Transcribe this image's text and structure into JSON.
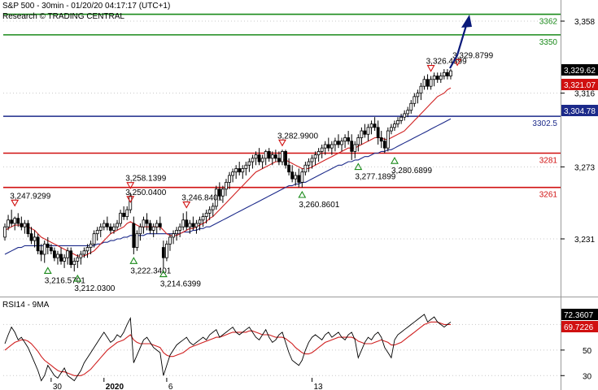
{
  "header": {
    "title": "S&P 500 - 30min - 01/20/20 04:17:17 (UTC+1)",
    "subtitle": "Research © TRADING CENTRAL"
  },
  "colors": {
    "candle": "#000000",
    "ma_fast": "#d02020",
    "ma_slow": "#1c2a8a",
    "resistance_green": "#1a8a1a",
    "level_red": "#d01010",
    "level_blue": "#1c2a8a",
    "arrow": "#0a1a7a",
    "price_tag_dark": "#000000",
    "price_tag_red": "#d01010",
    "price_tag_blue": "#1c2a8a"
  },
  "levels": [
    {
      "label": "3362",
      "value": 3362,
      "color": "green"
    },
    {
      "label": "3350",
      "value": 3350,
      "color": "green"
    },
    {
      "label": "3302.5",
      "value": 3302.5,
      "color": "blue"
    },
    {
      "label": "3281",
      "value": 3281,
      "color": "red"
    },
    {
      "label": "3261",
      "value": 3261,
      "color": "red"
    }
  ],
  "price_tags": [
    {
      "label": "3,329.62",
      "value": 3329.62,
      "style": "dark"
    },
    {
      "label": "3,321.07",
      "value": 3321.07,
      "style": "red"
    },
    {
      "label": "3,304.78",
      "value": 3304.78,
      "style": "blue"
    }
  ],
  "rsi": {
    "title": "RSI14 - 9MA",
    "tags": [
      {
        "label": "72.3607",
        "value": 72.36,
        "style": "dark"
      },
      {
        "label": "69.7226",
        "value": 69.72,
        "style": "red"
      }
    ],
    "ticks": [
      "50",
      "30"
    ]
  },
  "annotations": [
    {
      "label": "3,247.9299",
      "type": "high",
      "bar": 3,
      "value": 3247.93
    },
    {
      "label": "3,216.5701",
      "type": "low",
      "bar": 13,
      "value": 3216.57
    },
    {
      "label": "3,212.0300",
      "type": "low",
      "bar": 22,
      "value": 3212.03
    },
    {
      "label": "3,250.0400",
      "type": "high",
      "bar": 38,
      "value": 3250.04
    },
    {
      "label": "3,258.1399",
      "type": "high",
      "bar": 38,
      "value": 3258.14
    },
    {
      "label": "3,222.3401",
      "type": "low",
      "bar": 39,
      "value": 3222.34
    },
    {
      "label": "3,214.6399",
      "type": "low",
      "bar": 48,
      "value": 3214.64
    },
    {
      "label": "3,246.8401",
      "type": "high",
      "bar": 55,
      "value": 3246.84
    },
    {
      "label": "3,282.9900",
      "type": "high",
      "bar": 84,
      "value": 3282.99
    },
    {
      "label": "3,260.8601",
      "type": "low",
      "bar": 90,
      "value": 3260.86
    },
    {
      "label": "3,277.1899",
      "type": "low",
      "bar": 107,
      "value": 3277.19
    },
    {
      "label": "3,280.6899",
      "type": "low",
      "bar": 118,
      "value": 3280.69
    },
    {
      "label": "3,326.4399",
      "type": "high",
      "bar": 129,
      "value": 3326.44
    },
    {
      "label": "3,329.8799",
      "type": "high",
      "bar": 137,
      "value": 3329.88
    }
  ],
  "chart_data": {
    "type": "candlestick",
    "y_ticks": [
      3358,
      3316,
      3273,
      3231
    ],
    "y_tick_labels": [
      "3,358",
      "3,316",
      "3,273",
      "3,231"
    ],
    "ylim": [
      3200,
      3368
    ],
    "x_tick_labels": [
      {
        "label": "30",
        "bar": 14
      },
      {
        "label": "2020",
        "bar": 30
      },
      {
        "label": "6",
        "bar": 49
      },
      {
        "label": "13",
        "bar": 93
      }
    ],
    "candles": [
      [
        3232,
        3240,
        3230,
        3238
      ],
      [
        3238,
        3245,
        3236,
        3242
      ],
      [
        3242,
        3248,
        3238,
        3240
      ],
      [
        3240,
        3244,
        3236,
        3243
      ],
      [
        3243,
        3246,
        3238,
        3240
      ],
      [
        3240,
        3244,
        3236,
        3238
      ],
      [
        3238,
        3242,
        3234,
        3240
      ],
      [
        3240,
        3242,
        3232,
        3234
      ],
      [
        3234,
        3238,
        3228,
        3230
      ],
      [
        3230,
        3236,
        3226,
        3232
      ],
      [
        3232,
        3234,
        3222,
        3224
      ],
      [
        3224,
        3228,
        3218,
        3222
      ],
      [
        3222,
        3230,
        3217,
        3228
      ],
      [
        3228,
        3232,
        3222,
        3226
      ],
      [
        3226,
        3228,
        3222,
        3224
      ],
      [
        3224,
        3226,
        3218,
        3220
      ],
      [
        3220,
        3224,
        3216,
        3222
      ],
      [
        3222,
        3226,
        3216,
        3218
      ],
      [
        3218,
        3222,
        3214,
        3220
      ],
      [
        3220,
        3226,
        3216,
        3224
      ],
      [
        3224,
        3226,
        3214,
        3216
      ],
      [
        3216,
        3220,
        3212,
        3218
      ],
      [
        3218,
        3222,
        3214,
        3220
      ],
      [
        3220,
        3224,
        3216,
        3222
      ],
      [
        3222,
        3226,
        3220,
        3224
      ],
      [
        3224,
        3228,
        3220,
        3226
      ],
      [
        3226,
        3230,
        3222,
        3228
      ],
      [
        3228,
        3236,
        3226,
        3234
      ],
      [
        3234,
        3238,
        3230,
        3236
      ],
      [
        3236,
        3240,
        3232,
        3238
      ],
      [
        3238,
        3242,
        3236,
        3240
      ],
      [
        3240,
        3244,
        3236,
        3238
      ],
      [
        3238,
        3240,
        3234,
        3236
      ],
      [
        3236,
        3240,
        3234,
        3238
      ],
      [
        3238,
        3242,
        3236,
        3240
      ],
      [
        3240,
        3248,
        3238,
        3246
      ],
      [
        3246,
        3250,
        3242,
        3244
      ],
      [
        3244,
        3250,
        3242,
        3248
      ],
      [
        3248,
        3258,
        3246,
        3256
      ],
      [
        3240,
        3244,
        3222,
        3226
      ],
      [
        3226,
        3236,
        3224,
        3234
      ],
      [
        3234,
        3240,
        3230,
        3238
      ],
      [
        3238,
        3244,
        3234,
        3242
      ],
      [
        3242,
        3246,
        3236,
        3240
      ],
      [
        3240,
        3242,
        3234,
        3236
      ],
      [
        3236,
        3240,
        3232,
        3238
      ],
      [
        3238,
        3242,
        3234,
        3240
      ],
      [
        3240,
        3244,
        3236,
        3238
      ],
      [
        3226,
        3230,
        3214,
        3220
      ],
      [
        3220,
        3230,
        3218,
        3228
      ],
      [
        3228,
        3234,
        3224,
        3232
      ],
      [
        3232,
        3236,
        3228,
        3234
      ],
      [
        3234,
        3238,
        3230,
        3236
      ],
      [
        3236,
        3240,
        3232,
        3238
      ],
      [
        3238,
        3246,
        3236,
        3242
      ],
      [
        3242,
        3247,
        3236,
        3238
      ],
      [
        3238,
        3242,
        3234,
        3240
      ],
      [
        3240,
        3244,
        3236,
        3238
      ],
      [
        3238,
        3242,
        3234,
        3240
      ],
      [
        3240,
        3244,
        3236,
        3242
      ],
      [
        3242,
        3246,
        3238,
        3244
      ],
      [
        3244,
        3248,
        3240,
        3246
      ],
      [
        3246,
        3250,
        3242,
        3248
      ],
      [
        3248,
        3252,
        3244,
        3250
      ],
      [
        3250,
        3262,
        3248,
        3260
      ],
      [
        3260,
        3264,
        3254,
        3256
      ],
      [
        3256,
        3262,
        3252,
        3260
      ],
      [
        3260,
        3266,
        3256,
        3264
      ],
      [
        3264,
        3270,
        3260,
        3268
      ],
      [
        3268,
        3272,
        3264,
        3270
      ],
      [
        3270,
        3274,
        3266,
        3272
      ],
      [
        3272,
        3276,
        3268,
        3270
      ],
      [
        3270,
        3274,
        3266,
        3272
      ],
      [
        3272,
        3276,
        3268,
        3274
      ],
      [
        3274,
        3278,
        3270,
        3276
      ],
      [
        3276,
        3280,
        3272,
        3278
      ],
      [
        3278,
        3282,
        3274,
        3280
      ],
      [
        3280,
        3284,
        3274,
        3276
      ],
      [
        3276,
        3280,
        3272,
        3278
      ],
      [
        3278,
        3283,
        3274,
        3282
      ],
      [
        3282,
        3284,
        3276,
        3278
      ],
      [
        3278,
        3282,
        3274,
        3280
      ],
      [
        3280,
        3283,
        3276,
        3278
      ],
      [
        3278,
        3282,
        3274,
        3276
      ],
      [
        3276,
        3283,
        3274,
        3282
      ],
      [
        3282,
        3283,
        3272,
        3274
      ],
      [
        3274,
        3278,
        3268,
        3270
      ],
      [
        3270,
        3274,
        3264,
        3266
      ],
      [
        3266,
        3270,
        3262,
        3268
      ],
      [
        3268,
        3272,
        3261,
        3264
      ],
      [
        3264,
        3272,
        3261,
        3270
      ],
      [
        3270,
        3276,
        3268,
        3274
      ],
      [
        3274,
        3278,
        3270,
        3276
      ],
      [
        3276,
        3280,
        3272,
        3278
      ],
      [
        3278,
        3282,
        3274,
        3280
      ],
      [
        3280,
        3284,
        3276,
        3282
      ],
      [
        3282,
        3286,
        3278,
        3284
      ],
      [
        3284,
        3288,
        3280,
        3286
      ],
      [
        3286,
        3290,
        3282,
        3284
      ],
      [
        3284,
        3288,
        3280,
        3286
      ],
      [
        3286,
        3290,
        3282,
        3288
      ],
      [
        3288,
        3292,
        3284,
        3286
      ],
      [
        3286,
        3290,
        3282,
        3288
      ],
      [
        3288,
        3292,
        3284,
        3290
      ],
      [
        3290,
        3294,
        3286,
        3288
      ],
      [
        3288,
        3292,
        3277,
        3282
      ],
      [
        3282,
        3288,
        3278,
        3286
      ],
      [
        3286,
        3292,
        3282,
        3290
      ],
      [
        3290,
        3296,
        3286,
        3294
      ],
      [
        3294,
        3298,
        3290,
        3292
      ],
      [
        3292,
        3298,
        3288,
        3296
      ],
      [
        3296,
        3300,
        3292,
        3298
      ],
      [
        3298,
        3302,
        3294,
        3296
      ],
      [
        3296,
        3300,
        3286,
        3290
      ],
      [
        3290,
        3294,
        3284,
        3288
      ],
      [
        3288,
        3290,
        3281,
        3284
      ],
      [
        3284,
        3296,
        3282,
        3294
      ],
      [
        3294,
        3298,
        3292,
        3296
      ],
      [
        3296,
        3300,
        3294,
        3298
      ],
      [
        3298,
        3302,
        3296,
        3300
      ],
      [
        3300,
        3304,
        3298,
        3302
      ],
      [
        3302,
        3306,
        3300,
        3304
      ],
      [
        3304,
        3308,
        3302,
        3306
      ],
      [
        3306,
        3312,
        3304,
        3310
      ],
      [
        3310,
        3316,
        3308,
        3314
      ],
      [
        3314,
        3318,
        3310,
        3316
      ],
      [
        3316,
        3322,
        3312,
        3320
      ],
      [
        3320,
        3326,
        3318,
        3324
      ],
      [
        3324,
        3327,
        3318,
        3320
      ],
      [
        3320,
        3326,
        3318,
        3324
      ],
      [
        3324,
        3328,
        3320,
        3326
      ],
      [
        3326,
        3328,
        3322,
        3324
      ],
      [
        3324,
        3328,
        3322,
        3326
      ],
      [
        3326,
        3330,
        3324,
        3328
      ],
      [
        3328,
        3330,
        3324,
        3326
      ],
      [
        3326,
        3330,
        3324,
        3329
      ]
    ],
    "ma_fast": [
      3236,
      3237,
      3238,
      3239,
      3239,
      3239,
      3239,
      3238,
      3237,
      3236,
      3234,
      3232,
      3231,
      3230,
      3229,
      3228,
      3227,
      3226,
      3225,
      3224,
      3223,
      3222,
      3221,
      3221,
      3221,
      3222,
      3223,
      3224,
      3226,
      3228,
      3230,
      3232,
      3234,
      3235,
      3236,
      3237,
      3238,
      3240,
      3241,
      3240,
      3239,
      3238,
      3238,
      3238,
      3238,
      3238,
      3238,
      3238,
      3236,
      3234,
      3233,
      3233,
      3233,
      3234,
      3235,
      3236,
      3237,
      3237,
      3238,
      3239,
      3240,
      3241,
      3243,
      3244,
      3246,
      3248,
      3250,
      3252,
      3254,
      3256,
      3258,
      3260,
      3262,
      3264,
      3266,
      3268,
      3270,
      3271,
      3272,
      3273,
      3274,
      3275,
      3276,
      3276,
      3277,
      3277,
      3276,
      3275,
      3274,
      3273,
      3272,
      3272,
      3272,
      3273,
      3274,
      3275,
      3276,
      3277,
      3278,
      3279,
      3280,
      3281,
      3282,
      3283,
      3284,
      3284,
      3284,
      3285,
      3286,
      3287,
      3288,
      3289,
      3290,
      3290,
      3290,
      3289,
      3289,
      3290,
      3291,
      3292,
      3293,
      3294,
      3296,
      3298,
      3300,
      3302,
      3304,
      3306,
      3308,
      3310,
      3312,
      3314,
      3315,
      3316,
      3318,
      3319
    ],
    "ma_slow": [
      3222,
      3223,
      3224,
      3225,
      3226,
      3226,
      3227,
      3227,
      3227,
      3227,
      3227,
      3227,
      3227,
      3227,
      3227,
      3227,
      3227,
      3227,
      3227,
      3227,
      3227,
      3227,
      3227,
      3227,
      3227,
      3227,
      3227,
      3227,
      3228,
      3228,
      3229,
      3229,
      3230,
      3230,
      3231,
      3231,
      3232,
      3232,
      3233,
      3233,
      3233,
      3233,
      3233,
      3234,
      3234,
      3234,
      3234,
      3234,
      3234,
      3234,
      3234,
      3234,
      3234,
      3234,
      3235,
      3235,
      3235,
      3236,
      3236,
      3237,
      3237,
      3238,
      3238,
      3239,
      3240,
      3241,
      3242,
      3243,
      3244,
      3245,
      3246,
      3247,
      3248,
      3249,
      3250,
      3251,
      3252,
      3253,
      3254,
      3255,
      3256,
      3257,
      3258,
      3259,
      3260,
      3261,
      3262,
      3262,
      3263,
      3263,
      3264,
      3264,
      3265,
      3266,
      3267,
      3268,
      3269,
      3270,
      3271,
      3272,
      3273,
      3274,
      3274,
      3275,
      3276,
      3276,
      3277,
      3277,
      3278,
      3279,
      3279,
      3280,
      3281,
      3281,
      3282,
      3282,
      3283,
      3283,
      3284,
      3285,
      3286,
      3287,
      3288,
      3289,
      3290,
      3291,
      3292,
      3293,
      3294,
      3295,
      3296,
      3297,
      3298,
      3299,
      3300,
      3301
    ],
    "rsi_values": [
      55,
      62,
      68,
      64,
      58,
      60,
      56,
      52,
      46,
      40,
      34,
      26,
      30,
      38,
      34,
      30,
      28,
      32,
      36,
      30,
      28,
      26,
      30,
      34,
      40,
      44,
      48,
      52,
      56,
      60,
      64,
      60,
      56,
      58,
      62,
      60,
      64,
      70,
      75,
      40,
      46,
      52,
      58,
      60,
      56,
      52,
      50,
      48,
      30,
      38,
      46,
      50,
      54,
      56,
      58,
      60,
      56,
      54,
      56,
      58,
      60,
      58,
      62,
      64,
      66,
      60,
      62,
      64,
      66,
      68,
      64,
      62,
      64,
      66,
      68,
      64,
      60,
      58,
      62,
      66,
      60,
      56,
      58,
      62,
      64,
      56,
      48,
      42,
      40,
      38,
      42,
      50,
      56,
      60,
      62,
      60,
      58,
      62,
      64,
      60,
      62,
      64,
      60,
      58,
      62,
      64,
      58,
      44,
      50,
      56,
      60,
      58,
      62,
      64,
      60,
      52,
      48,
      44,
      58,
      62,
      64,
      66,
      68,
      70,
      72,
      74,
      76,
      78,
      72,
      74,
      76,
      72,
      70,
      68,
      70,
      72
    ],
    "rsi_ma": [
      50,
      52,
      54,
      56,
      57,
      58,
      58,
      57,
      55,
      52,
      49,
      45,
      42,
      40,
      38,
      36,
      34,
      33,
      33,
      32,
      31,
      30,
      30,
      30,
      31,
      33,
      35,
      38,
      41,
      44,
      47,
      50,
      52,
      54,
      56,
      57,
      58,
      60,
      62,
      58,
      56,
      55,
      55,
      55,
      55,
      54,
      53,
      52,
      48,
      46,
      45,
      45,
      46,
      47,
      48,
      50,
      52,
      53,
      54,
      55,
      56,
      57,
      58,
      59,
      60,
      60,
      61,
      62,
      63,
      64,
      64,
      64,
      64,
      64,
      65,
      65,
      64,
      63,
      62,
      62,
      62,
      61,
      60,
      60,
      60,
      59,
      57,
      55,
      52,
      50,
      48,
      47,
      47,
      48,
      50,
      52,
      54,
      56,
      57,
      58,
      59,
      60,
      60,
      60,
      60,
      60,
      59,
      57,
      56,
      55,
      55,
      55,
      56,
      57,
      58,
      57,
      56,
      54,
      54,
      55,
      56,
      58,
      60,
      62,
      64,
      66,
      68,
      70,
      71,
      72,
      72,
      72,
      71,
      70,
      70,
      70
    ],
    "rsi_ylim": [
      20,
      90
    ]
  }
}
